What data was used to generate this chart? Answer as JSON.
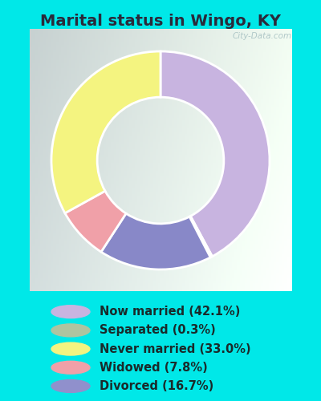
{
  "title": "Marital status in Wingo, KY",
  "labels": [
    "Now married (42.1%)",
    "Separated (0.3%)",
    "Never married (33.0%)",
    "Widowed (7.8%)",
    "Divorced (16.7%)"
  ],
  "legend_colors": [
    "#c8b4e0",
    "#aec4a0",
    "#f4f480",
    "#f0a0a8",
    "#9090cc"
  ],
  "wedge_sizes": [
    42.1,
    0.3,
    33.0,
    7.8,
    16.7
  ],
  "wedge_colors": [
    "#c8b4e0",
    "#c0d4b0",
    "#f4f480",
    "#f0a0a8",
    "#8888c8"
  ],
  "wedge_order": [
    0,
    4,
    3,
    2,
    1
  ],
  "bg_color": "#00e8e8",
  "chart_bg_gradient_left": "#c8e8d0",
  "chart_bg_gradient_right": "#e8f4ec",
  "watermark": "City-Data.com",
  "title_fontsize": 14,
  "legend_fontsize": 10.5,
  "donut_width": 0.42,
  "start_angle": 90
}
